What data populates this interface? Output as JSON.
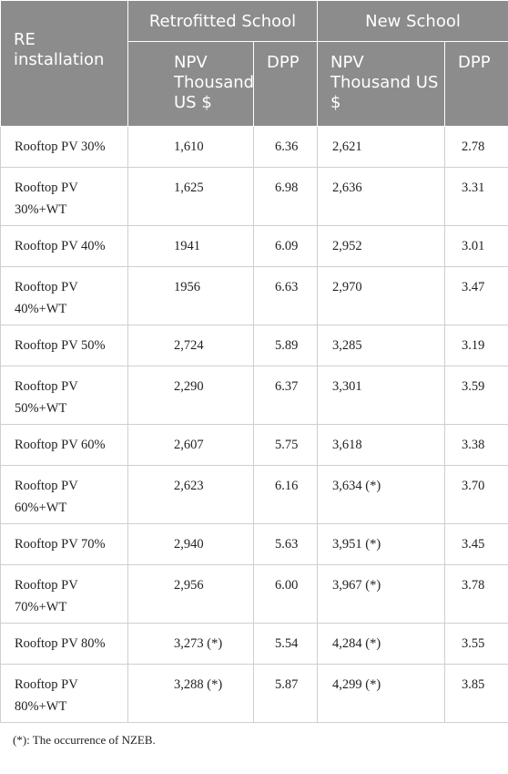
{
  "table": {
    "header": {
      "row_label": "RE installation",
      "groups": [
        "Retrofitted School",
        "New School"
      ],
      "columns": [
        "NPV Thousand US $",
        "DPP",
        "NPV Thousand US $",
        "DPP"
      ]
    },
    "rows": [
      [
        "Rooftop PV 30%",
        "1,610",
        "6.36",
        "2,621",
        "2.78"
      ],
      [
        "Rooftop PV 30%+WT",
        "1,625",
        "6.98",
        "2,636",
        "3.31"
      ],
      [
        "Rooftop PV 40%",
        "1941",
        "6.09",
        "2,952",
        "3.01"
      ],
      [
        "Rooftop PV 40%+WT",
        "1956",
        "6.63",
        "2,970",
        "3.47"
      ],
      [
        "Rooftop PV 50%",
        "2,724",
        "5.89",
        "3,285",
        "3.19"
      ],
      [
        "Rooftop PV 50%+WT",
        "2,290",
        "6.37",
        "3,301",
        "3.59"
      ],
      [
        "Rooftop PV 60%",
        "2,607",
        "5.75",
        "3,618",
        "3.38"
      ],
      [
        "Rooftop PV 60%+WT",
        "2,623",
        "6.16",
        "3,634 (*)",
        "3.70"
      ],
      [
        "Rooftop PV 70%",
        "2,940",
        "5.63",
        "3,951 (*)",
        "3.45"
      ],
      [
        "Rooftop PV 70%+WT",
        "2,956",
        "6.00",
        "3,967 (*)",
        "3.78"
      ],
      [
        "Rooftop PV 80%",
        "3,273 (*)",
        "5.54",
        "4,284 (*)",
        "3.55"
      ],
      [
        "Rooftop PV 80%+WT",
        "3,288 (*)",
        "5.87",
        "4,299 (*)",
        "3.85"
      ]
    ],
    "footnote": "(*): The occurrence of NZEB."
  }
}
